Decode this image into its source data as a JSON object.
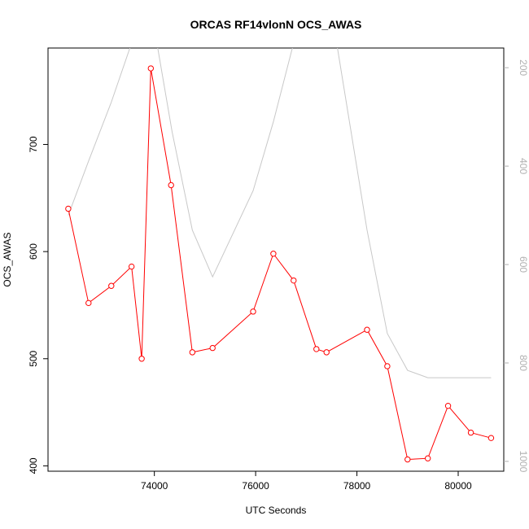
{
  "chart_data": {
    "type": "line",
    "title": "ORCAS RF14vlonN OCS_AWAS",
    "xlabel": "UTC Seconds",
    "ylabel": "OCS_AWAS",
    "xlim": [
      71900,
      80900
    ],
    "ylim": [
      395,
      790
    ],
    "x_ticks": [
      74000,
      76000,
      78000,
      80000
    ],
    "y_ticks": [
      400,
      500,
      600,
      700
    ],
    "grid": false,
    "series": [
      {
        "color": "#ff0000",
        "marker": "open-circle",
        "x": [
          72300,
          72700,
          73150,
          73550,
          73750,
          73930,
          74330,
          74750,
          75150,
          75950,
          76350,
          76750,
          77200,
          77400,
          78200,
          78600,
          79000,
          79400,
          79800,
          80250,
          80650
        ],
        "y": [
          640,
          552,
          568,
          586,
          500,
          771,
          662,
          506,
          510,
          544,
          598,
          573,
          509,
          506,
          527,
          493,
          406,
          407,
          456,
          431,
          426
        ]
      }
    ],
    "secondary_axis": {
      "side": "right",
      "color": "#b0b0b0",
      "ylim": [
        1020,
        160
      ],
      "ticks": [
        200,
        400,
        600,
        800,
        1000
      ],
      "series": [
        {
          "color": "#c8c8c8",
          "x": [
            72300,
            72700,
            73150,
            73550,
            73950,
            74350,
            74750,
            75150,
            75950,
            76350,
            76750,
            77200,
            77600,
            78200,
            78600,
            79000,
            79400,
            79800,
            80250,
            80650
          ],
          "y": [
            500,
            390,
            270,
            150,
            90,
            330,
            530,
            625,
            450,
            310,
            150,
            90,
            150,
            530,
            740,
            815,
            830,
            830,
            830,
            830
          ]
        }
      ]
    }
  }
}
